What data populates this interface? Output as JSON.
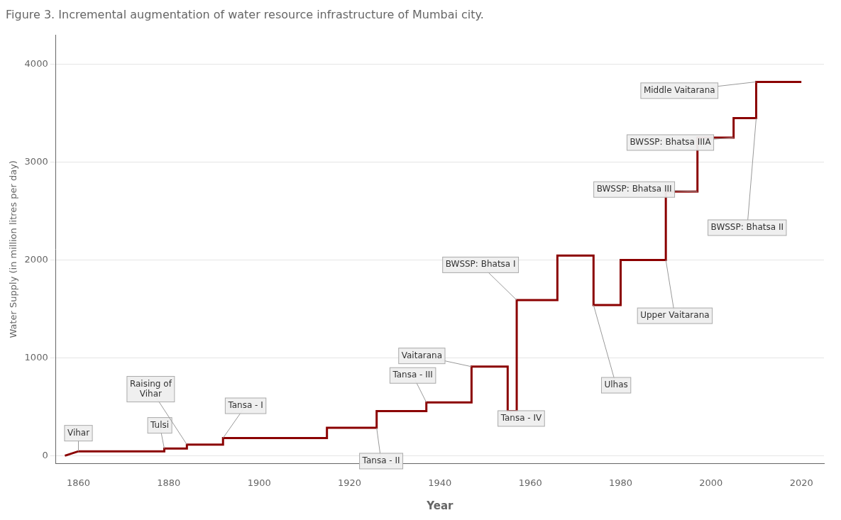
{
  "chart_data": {
    "type": "line",
    "title": "Figure 3. Incremental augmentation of water resource infrastructure of Mumbai city.",
    "xlabel": "Year",
    "ylabel": "Water Supply (in million litres per day)",
    "color": "#8B0000",
    "x": [
      1857,
      1860,
      1879,
      1879,
      1884,
      1884,
      1892,
      1892,
      1915,
      1915,
      1926,
      1926,
      1937,
      1937,
      1947,
      1947,
      1955,
      1955,
      1957,
      1957,
      1966,
      1966,
      1974,
      1974,
      1980,
      1980,
      1990,
      1990,
      1997,
      1997,
      2005,
      2005,
      2010,
      2010,
      2020
    ],
    "values": [
      0,
      45,
      45,
      73,
      73,
      114,
      114,
      180,
      180,
      285,
      285,
      455,
      455,
      545,
      545,
      910,
      910,
      455,
      455,
      1590,
      1590,
      2045,
      2045,
      1540,
      1540,
      2000,
      2000,
      2700,
      2700,
      3250,
      3250,
      3450,
      3450,
      3820,
      3820
    ],
    "xlim": [
      1855,
      2025
    ],
    "ylim": [
      -80,
      4300
    ],
    "xticks": [
      1860,
      1880,
      1900,
      1920,
      1940,
      1960,
      1980,
      2000,
      2020
    ],
    "yticks": [
      0,
      1000,
      2000,
      3000,
      4000
    ],
    "grid": "y",
    "annotations": [
      {
        "text": "Vihar",
        "x": 1860,
        "y": 45,
        "text_x": 1860,
        "text_y": 230
      },
      {
        "text": "Tulsi",
        "x": 1879,
        "y": 73,
        "text_x": 1878,
        "text_y": 310
      },
      {
        "text": "Raising of\nVihar",
        "x": 1884,
        "y": 114,
        "text_x": 1876,
        "text_y": 680
      },
      {
        "text": "Tansa - I",
        "x": 1892,
        "y": 180,
        "text_x": 1897,
        "text_y": 510
      },
      {
        "text": "Tansa - II",
        "x": 1926,
        "y": 285,
        "text_x": 1927,
        "text_y": -55
      },
      {
        "text": "Tansa - III",
        "x": 1937,
        "y": 545,
        "text_x": 1934,
        "text_y": 820
      },
      {
        "text": "Vaitarana",
        "x": 1947,
        "y": 910,
        "text_x": 1936,
        "text_y": 1020
      },
      {
        "text": "Tansa - IV",
        "x": 1955,
        "y": 455,
        "text_x": 1958,
        "text_y": 380
      },
      {
        "text": "BWSSP: Bhatsa I",
        "x": 1957,
        "y": 1590,
        "text_x": 1949,
        "text_y": 1950
      },
      {
        "text": "Ulhas",
        "x": 1974,
        "y": 1540,
        "text_x": 1979,
        "text_y": 720
      },
      {
        "text": "Upper Vaitarana",
        "x": 1990,
        "y": 2000,
        "text_x": 1992,
        "text_y": 1430
      },
      {
        "text": "BWSSP: Bhatsa III",
        "x": 1997,
        "y": 2700,
        "text_x": 1983,
        "text_y": 2720
      },
      {
        "text": "BWSSP: Bhatsa IIIA",
        "x": 2005,
        "y": 3250,
        "text_x": 1991,
        "text_y": 3200
      },
      {
        "text": "Middle Vaitarana",
        "x": 2010,
        "y": 3820,
        "text_x": 1993,
        "text_y": 3730
      },
      {
        "text": "BWSSP: Bhatsa II",
        "x": 2010,
        "y": 3450,
        "text_x": 2008,
        "text_y": 2330
      }
    ]
  }
}
